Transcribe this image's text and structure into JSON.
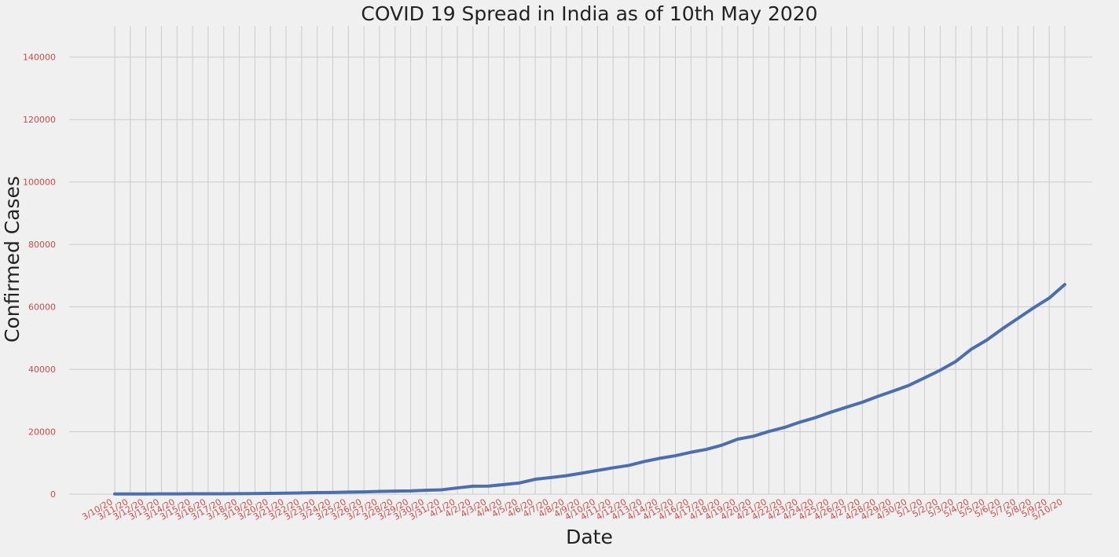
{
  "chart_data": {
    "type": "line",
    "title": "COVID 19 Spread in India as of 10th May 2020",
    "xlabel": "Date",
    "ylabel": "Confirmed Cases",
    "categories": [
      "3/10/20",
      "3/11/20",
      "3/12/20",
      "3/13/20",
      "3/14/20",
      "3/15/20",
      "3/16/20",
      "3/17/20",
      "3/18/20",
      "3/19/20",
      "3/20/20",
      "3/21/20",
      "3/22/20",
      "3/23/20",
      "3/24/20",
      "3/25/20",
      "3/26/20",
      "3/27/20",
      "3/28/20",
      "3/29/20",
      "3/30/20",
      "3/31/20",
      "4/1/20",
      "4/2/20",
      "4/3/20",
      "4/4/20",
      "4/5/20",
      "4/6/20",
      "4/7/20",
      "4/8/20",
      "4/9/20",
      "4/10/20",
      "4/11/20",
      "4/12/20",
      "4/13/20",
      "4/14/20",
      "4/15/20",
      "4/16/20",
      "4/17/20",
      "4/18/20",
      "4/19/20",
      "4/20/20",
      "4/21/20",
      "4/22/20",
      "4/23/20",
      "4/24/20",
      "4/25/20",
      "4/26/20",
      "4/27/20",
      "4/28/20",
      "4/29/20",
      "4/30/20",
      "5/1/20",
      "5/2/20",
      "5/3/20",
      "5/4/20",
      "5/5/20",
      "5/6/20",
      "5/7/20",
      "5/8/20",
      "5/9/20",
      "5/10/20"
    ],
    "series": [
      {
        "values": [
          56,
          62,
          73,
          82,
          102,
          113,
          119,
          142,
          156,
          194,
          244,
          330,
          396,
          499,
          536,
          657,
          727,
          887,
          987,
          1024,
          1251,
          1397,
          1998,
          2543,
          2567,
          3082,
          3588,
          4778,
          5311,
          5916,
          6725,
          7598,
          8446,
          9205,
          10453,
          11487,
          12322,
          13430,
          14352,
          15722,
          17615,
          18539,
          20080,
          21370,
          23077,
          24530,
          26283,
          27890,
          29451,
          31324,
          33062,
          34863,
          37257,
          39699,
          42505,
          46437,
          49400,
          52987,
          56351,
          59695,
          62808,
          67161
        ]
      }
    ],
    "ylim": [
      0,
      150000
    ],
    "yticks": [
      0,
      20000,
      40000,
      60000,
      80000,
      100000,
      120000,
      140000
    ],
    "grid": true,
    "legend": "none",
    "colors": {
      "background": "#f0f0f0",
      "line": "#4c6ead",
      "grid": "#cbcbcb",
      "tick_label": "#cd4b4b",
      "text": "#222222"
    }
  }
}
